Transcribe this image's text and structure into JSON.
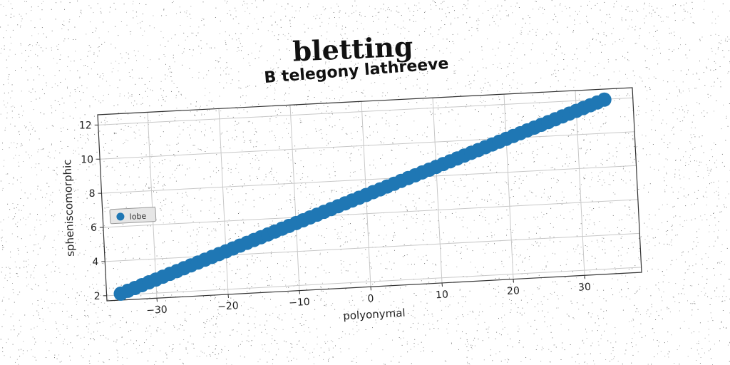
{
  "figure": {
    "title": "bletting"
  },
  "chart_data": {
    "type": "scatter",
    "title": "B telegony lathreeve",
    "xlabel": "polyonymal",
    "ylabel": "spheniscomorphic",
    "xlim": [
      -37,
      38
    ],
    "ylim": [
      1.7,
      12.6
    ],
    "xticks": [
      -30,
      -20,
      -10,
      0,
      10,
      20,
      30
    ],
    "xtick_labels": [
      "−30",
      "−20",
      "−10",
      "0",
      "10",
      "20",
      "30"
    ],
    "yticks": [
      2,
      4,
      6,
      8,
      10,
      12
    ],
    "ytick_labels": [
      "2",
      "4",
      "6",
      "8",
      "10",
      "12"
    ],
    "grid": true,
    "legend_position": "center-left",
    "color": "#1f77b4",
    "series": [
      {
        "name": "lobe",
        "x_start": -35,
        "x_end": 34,
        "x_step": 1,
        "slope": 0.1435,
        "intercept": 7.1
      }
    ]
  }
}
